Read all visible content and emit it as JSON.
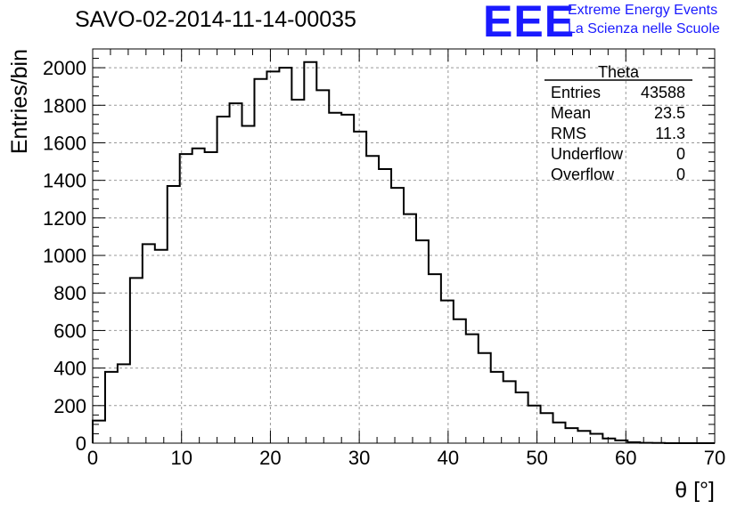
{
  "header": {
    "title": "SAVO-02-2014-11-14-00035",
    "logo_text": "EEE",
    "logo_line1": "Extreme Energy Events",
    "logo_line2": "La Scienza nelle Scuole"
  },
  "colors": {
    "logo": "#1a1aff",
    "line": "#000000",
    "grid": "#999999"
  },
  "chart_data": {
    "type": "histogram",
    "title": "SAVO-02-2014-11-14-00035",
    "xlabel": "θ [°]",
    "ylabel": "Entries/bin",
    "xlim": [
      0,
      70
    ],
    "ylim": [
      0,
      2100
    ],
    "grid": true,
    "bin_width": 1.4,
    "x_ticks": [
      "0",
      "10",
      "20",
      "30",
      "40",
      "50",
      "60",
      "70"
    ],
    "y_ticks": [
      "0",
      "200",
      "400",
      "600",
      "800",
      "1000",
      "1200",
      "1400",
      "1600",
      "1800",
      "2000"
    ],
    "values": [
      120,
      380,
      420,
      880,
      1060,
      1030,
      1370,
      1540,
      1570,
      1550,
      1740,
      1810,
      1690,
      1940,
      1980,
      2000,
      1830,
      2030,
      1880,
      1760,
      1750,
      1660,
      1530,
      1460,
      1360,
      1220,
      1080,
      900,
      760,
      660,
      580,
      480,
      380,
      330,
      270,
      200,
      160,
      110,
      80,
      65,
      50,
      25,
      15,
      5,
      2,
      1,
      0,
      0,
      0,
      0
    ],
    "stats_box": {
      "name": "Theta",
      "rows": [
        {
          "label": "Entries",
          "value": "43588"
        },
        {
          "label": "Mean",
          "value": "23.5"
        },
        {
          "label": "RMS",
          "value": "11.3"
        },
        {
          "label": "Underflow",
          "value": "0"
        },
        {
          "label": "Overflow",
          "value": "0"
        }
      ]
    }
  }
}
